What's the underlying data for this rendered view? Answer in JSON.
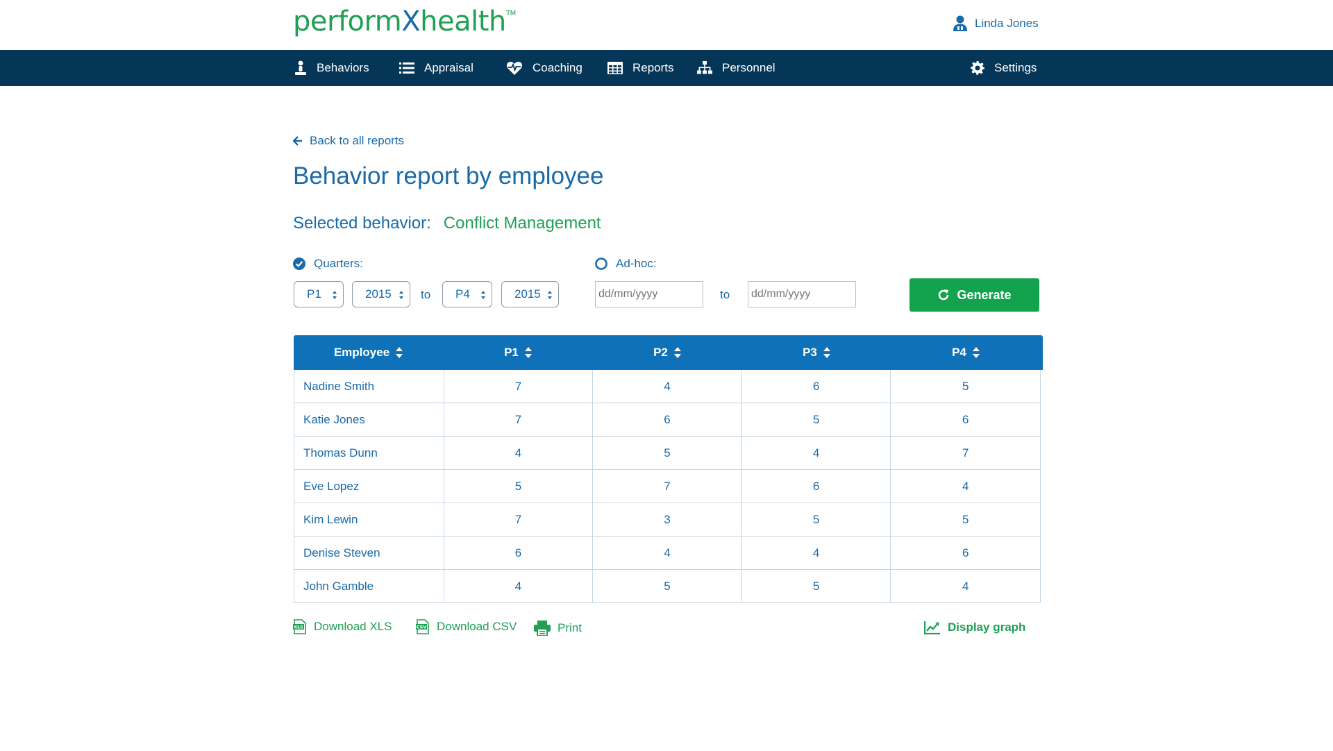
{
  "brand": {
    "logo_part1": "perform",
    "logo_part2": "X",
    "logo_part3": "health",
    "tm": "TM",
    "green": "#1fa055",
    "blue": "#1a6aa8",
    "nav_bg": "#063657"
  },
  "user": {
    "name": "Linda Jones",
    "icon": "user-icon"
  },
  "nav": {
    "behaviors": "Behaviors",
    "appraisal": "Appraisal",
    "coaching": "Coaching",
    "reports": "Reports",
    "personnel": "Personnel",
    "settings": "Settings"
  },
  "page": {
    "back": "Back to all reports",
    "title": "Behavior report by employee",
    "selected_label": "Selected behavior:",
    "selected_value": "Conflict Management"
  },
  "filters": {
    "quarters_label": "Quarters:",
    "quarters_checked": true,
    "from_quarter": "P1",
    "from_year": "2015",
    "to_label": "to",
    "to_quarter": "P4",
    "to_year": "2015",
    "adhoc_label": "Ad-hoc:",
    "adhoc_checked": false,
    "date_placeholder": "dd/mm/yyyy",
    "to_label2": "to",
    "generate": "Generate"
  },
  "table": {
    "headers": [
      "Employee",
      "P1",
      "P2",
      "P3",
      "P4"
    ],
    "rows": [
      {
        "name": "Nadine Smith",
        "p1": "7",
        "p2": "4",
        "p3": "6",
        "p4": "5"
      },
      {
        "name": "Katie Jones",
        "p1": "7",
        "p2": "6",
        "p3": "5",
        "p4": "6"
      },
      {
        "name": "Thomas Dunn",
        "p1": "4",
        "p2": "5",
        "p3": "4",
        "p4": "7"
      },
      {
        "name": "Eve Lopez",
        "p1": "5",
        "p2": "7",
        "p3": "6",
        "p4": "4"
      },
      {
        "name": "Kim Lewin",
        "p1": "7",
        "p2": "3",
        "p3": "5",
        "p4": "5"
      },
      {
        "name": "Denise Steven",
        "p1": "6",
        "p2": "4",
        "p3": "4",
        "p4": "6"
      },
      {
        "name": "John Gamble",
        "p1": "4",
        "p2": "5",
        "p3": "5",
        "p4": "4"
      }
    ]
  },
  "actions": {
    "xls": "Download XLS",
    "xls_icon_text": "XLS",
    "csv": "Download CSV",
    "csv_icon_text": "CSV",
    "print": "Print",
    "graph": "Display graph"
  }
}
